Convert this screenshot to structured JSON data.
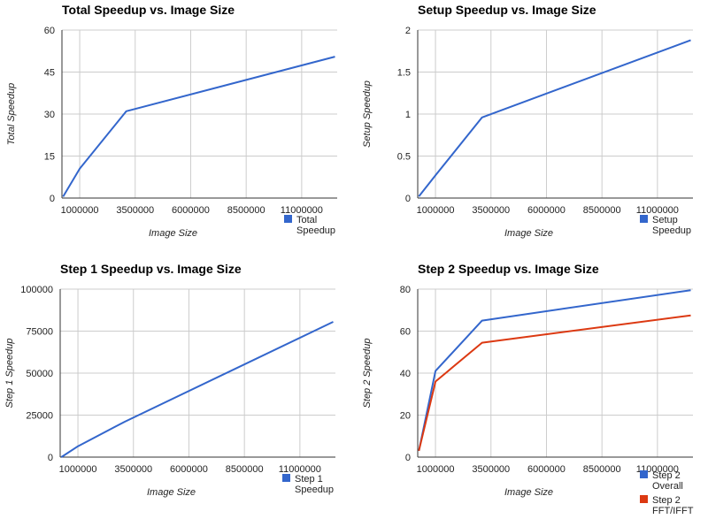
{
  "chart_data": [
    {
      "type": "line",
      "title": "Total Speedup vs. Image Size",
      "xlabel": "Image Size",
      "ylabel": "Total Speedup",
      "xlim": [
        200000,
        12600000
      ],
      "ylim": [
        0,
        60
      ],
      "x_ticks": [
        "1000000",
        "3500000",
        "6000000",
        "8500000",
        "11000000"
      ],
      "y_ticks": [
        "0",
        "15",
        "30",
        "45",
        "60"
      ],
      "legend": "right-bottom",
      "series": [
        {
          "name": "Total Speedup",
          "legend_lines": [
            "Total",
            "Speedup"
          ],
          "color": "#3366cc",
          "x": [
            250000,
            1000000,
            3100000,
            12500000
          ],
          "y": [
            0.5,
            10.5,
            31,
            50.5
          ]
        }
      ]
    },
    {
      "type": "line",
      "title": "Setup Speedup vs. Image Size",
      "xlabel": "Image Size",
      "ylabel": "Setup Speedup",
      "xlim": [
        200000,
        12600000
      ],
      "ylim": [
        0,
        2
      ],
      "x_ticks": [
        "1000000",
        "3500000",
        "6000000",
        "8500000",
        "11000000"
      ],
      "y_ticks": [
        "0",
        "0.5",
        "1",
        "1.5",
        "2"
      ],
      "legend": "right-bottom",
      "series": [
        {
          "name": "Setup Speedup",
          "legend_lines": [
            "Setup",
            "Speedup"
          ],
          "color": "#3366cc",
          "x": [
            250000,
            1000000,
            3100000,
            12500000
          ],
          "y": [
            0.02,
            0.27,
            0.96,
            1.88
          ]
        }
      ]
    },
    {
      "type": "line",
      "title": "Step 1 Speedup vs. Image Size",
      "xlabel": "Image Size",
      "ylabel": "Step 1 Speedup",
      "xlim": [
        200000,
        12600000
      ],
      "ylim": [
        0,
        100000
      ],
      "x_ticks": [
        "1000000",
        "3500000",
        "6000000",
        "8500000",
        "11000000"
      ],
      "y_ticks": [
        "0",
        "25000",
        "50000",
        "75000",
        "100000"
      ],
      "legend": "right-bottom",
      "series": [
        {
          "name": "Step 1 Speedup",
          "legend_lines": [
            "Step 1",
            "Speedup"
          ],
          "color": "#3366cc",
          "x": [
            250000,
            1000000,
            3100000,
            12500000
          ],
          "y": [
            0,
            6500,
            21000,
            80500
          ]
        }
      ]
    },
    {
      "type": "line",
      "title": "Step 2 Speedup vs. Image Size",
      "xlabel": "Image Size",
      "ylabel": "Step 2 Speedup",
      "xlim": [
        200000,
        12600000
      ],
      "ylim": [
        0,
        80
      ],
      "x_ticks": [
        "1000000",
        "3500000",
        "6000000",
        "8500000",
        "11000000"
      ],
      "y_ticks": [
        "0",
        "20",
        "40",
        "60",
        "80"
      ],
      "legend": "right-bottom",
      "series": [
        {
          "name": "Step 2 Overall",
          "legend_lines": [
            "Step 2",
            "Overall"
          ],
          "color": "#3366cc",
          "x": [
            250000,
            1000000,
            3100000,
            12500000
          ],
          "y": [
            3,
            41,
            65,
            79.5
          ]
        },
        {
          "name": "Step 2 FFT/IFFT",
          "legend_lines": [
            "Step 2",
            "FFT/IFFT"
          ],
          "color": "#dc3912",
          "x": [
            250000,
            1000000,
            3100000,
            12500000
          ],
          "y": [
            3,
            36,
            54.5,
            67.5
          ]
        }
      ]
    }
  ]
}
